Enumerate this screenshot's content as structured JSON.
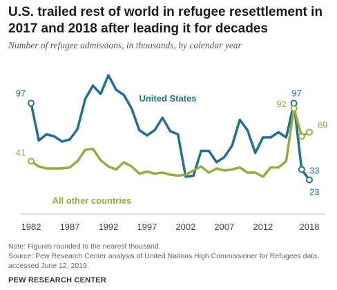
{
  "title": "U.S. trailed rest of world in refugee resettlement in 2017 and 2018 after leading it for decades",
  "subtitle": "Number of refugee admissions, in thousands, by calendar year",
  "note": "Note: Figures rounded to the nearest thousand.",
  "source": "Source: Pew Research Center analysis of United Nations High Commissioner for Refugees data, accessed June 12, 2019.",
  "brand": "PEW RESEARCH CENTER",
  "chart_data": {
    "type": "line",
    "x": [
      1982,
      1983,
      1984,
      1985,
      1986,
      1987,
      1988,
      1989,
      1990,
      1991,
      1992,
      1993,
      1994,
      1995,
      1996,
      1997,
      1998,
      1999,
      2000,
      2001,
      2002,
      2003,
      2004,
      2005,
      2006,
      2007,
      2008,
      2009,
      2010,
      2011,
      2012,
      2013,
      2014,
      2015,
      2016,
      2017,
      2018
    ],
    "xticks": [
      "1982",
      "1987",
      "1992",
      "1997",
      "2002",
      "2007",
      "2012",
      "2018"
    ],
    "xtick_values": [
      1982,
      1987,
      1992,
      1997,
      2002,
      2007,
      2012,
      2018
    ],
    "ylim": [
      0,
      120
    ],
    "series": [
      {
        "name": "United States",
        "color": "#1f6f97",
        "values": [
          97,
          61,
          67,
          65,
          60,
          62,
          72,
          101,
          114,
          106,
          124,
          110,
          105,
          92,
          71,
          66,
          71,
          83,
          70,
          67,
          26,
          27,
          51,
          51,
          40,
          45,
          56,
          81,
          71,
          49,
          64,
          64,
          69,
          64,
          97,
          33,
          23
        ]
      },
      {
        "name": "All other countries",
        "color": "#9caa3a",
        "values": [
          41,
          36,
          34,
          34,
          34,
          35,
          41,
          52,
          53,
          42,
          36,
          33,
          40,
          36,
          29,
          31,
          29,
          30,
          28,
          27,
          28,
          32,
          36,
          30,
          34,
          32,
          33,
          35,
          30,
          30,
          26,
          35,
          35,
          41,
          92,
          65,
          69
        ]
      }
    ],
    "labels": {
      "us_start": "97",
      "other_start": "41",
      "us_peak": "97",
      "other_peak": "92",
      "us_2017": "33",
      "us_2018": "23",
      "other_2018": "69"
    }
  }
}
